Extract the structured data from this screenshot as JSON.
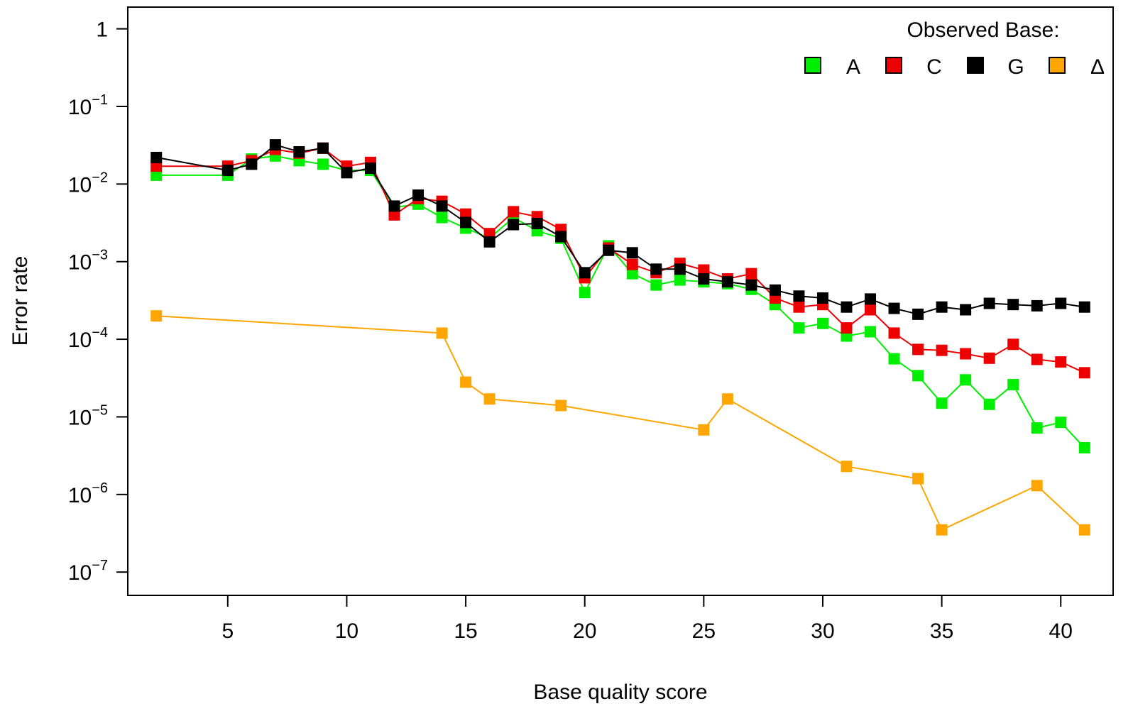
{
  "chart_data": {
    "type": "line",
    "xlabel": "Base quality score",
    "ylabel": "Error rate",
    "xlim": [
      0.8,
      42.2
    ],
    "ylim_log10": [
      -7.3,
      0.28
    ],
    "y_scale": "log10",
    "grid": false,
    "x_ticks": [
      5,
      10,
      15,
      20,
      25,
      30,
      35,
      40
    ],
    "y_ticks": [
      {
        "exp": 0,
        "base": "1",
        "sup": ""
      },
      {
        "exp": -1,
        "base": "10",
        "sup": "−1"
      },
      {
        "exp": -2,
        "base": "10",
        "sup": "−2"
      },
      {
        "exp": -3,
        "base": "10",
        "sup": "−3"
      },
      {
        "exp": -4,
        "base": "10",
        "sup": "−4"
      },
      {
        "exp": -5,
        "base": "10",
        "sup": "−5"
      },
      {
        "exp": -6,
        "base": "10",
        "sup": "−6"
      },
      {
        "exp": -7,
        "base": "10",
        "sup": "−7"
      }
    ],
    "legend": {
      "title": "Observed Base:",
      "placement": "top-right",
      "entries": [
        "A",
        "C",
        "G",
        "Δ"
      ]
    },
    "series": [
      {
        "name": "A",
        "color": "#00ee00",
        "points": [
          [
            2,
            0.013
          ],
          [
            5,
            0.013
          ],
          [
            6,
            0.021
          ],
          [
            7,
            0.023
          ],
          [
            8,
            0.02
          ],
          [
            9,
            0.018
          ],
          [
            10,
            0.015
          ],
          [
            11,
            0.015
          ],
          [
            12,
            0.005
          ],
          [
            13,
            0.0055
          ],
          [
            14,
            0.0037
          ],
          [
            15,
            0.0027
          ],
          [
            16,
            0.002
          ],
          [
            17,
            0.0037
          ],
          [
            18,
            0.0025
          ],
          [
            19,
            0.002
          ],
          [
            20,
            0.0004
          ],
          [
            21,
            0.0016
          ],
          [
            22,
            0.0007
          ],
          [
            23,
            0.0005
          ],
          [
            24,
            0.00058
          ],
          [
            25,
            0.00055
          ],
          [
            26,
            0.00052
          ],
          [
            27,
            0.00044
          ],
          [
            28,
            0.00028
          ],
          [
            29,
            0.00014
          ],
          [
            30,
            0.00016
          ],
          [
            31,
            0.00011
          ],
          [
            32,
            0.000125
          ],
          [
            33,
            5.6e-05
          ],
          [
            34,
            3.4e-05
          ],
          [
            35,
            1.5e-05
          ],
          [
            36,
            3e-05
          ],
          [
            37,
            1.45e-05
          ],
          [
            38,
            2.6e-05
          ],
          [
            39,
            7.2e-06
          ],
          [
            40,
            8.5e-06
          ],
          [
            41,
            4e-06
          ]
        ]
      },
      {
        "name": "C",
        "color": "#ee0000",
        "points": [
          [
            2,
            0.017
          ],
          [
            5,
            0.017
          ],
          [
            6,
            0.02
          ],
          [
            7,
            0.028
          ],
          [
            8,
            0.025
          ],
          [
            9,
            0.029
          ],
          [
            10,
            0.017
          ],
          [
            11,
            0.019
          ],
          [
            12,
            0.004
          ],
          [
            13,
            0.0065
          ],
          [
            14,
            0.006
          ],
          [
            15,
            0.0041
          ],
          [
            16,
            0.0023
          ],
          [
            17,
            0.0044
          ],
          [
            18,
            0.0038
          ],
          [
            19,
            0.0026
          ],
          [
            20,
            0.00062
          ],
          [
            21,
            0.0015
          ],
          [
            22,
            0.00092
          ],
          [
            23,
            0.00072
          ],
          [
            24,
            0.00095
          ],
          [
            25,
            0.00078
          ],
          [
            26,
            0.0006
          ],
          [
            27,
            0.0007
          ],
          [
            28,
            0.00034
          ],
          [
            29,
            0.00026
          ],
          [
            30,
            0.00028
          ],
          [
            31,
            0.00014
          ],
          [
            32,
            0.00024
          ],
          [
            33,
            0.00012
          ],
          [
            34,
            7.4e-05
          ],
          [
            35,
            7.2e-05
          ],
          [
            36,
            6.5e-05
          ],
          [
            37,
            5.7e-05
          ],
          [
            38,
            8.6e-05
          ],
          [
            39,
            5.5e-05
          ],
          [
            40,
            5.1e-05
          ],
          [
            41,
            3.7e-05
          ]
        ]
      },
      {
        "name": "G",
        "color": "#000000",
        "points": [
          [
            2,
            0.022
          ],
          [
            5,
            0.015
          ],
          [
            6,
            0.018
          ],
          [
            7,
            0.032
          ],
          [
            8,
            0.026
          ],
          [
            9,
            0.029
          ],
          [
            10,
            0.014
          ],
          [
            11,
            0.016
          ],
          [
            12,
            0.0052
          ],
          [
            13,
            0.0072
          ],
          [
            14,
            0.0052
          ],
          [
            15,
            0.0032
          ],
          [
            16,
            0.0018
          ],
          [
            17,
            0.003
          ],
          [
            18,
            0.0031
          ],
          [
            19,
            0.0021
          ],
          [
            20,
            0.00072
          ],
          [
            21,
            0.0014
          ],
          [
            22,
            0.0013
          ],
          [
            23,
            0.0008
          ],
          [
            24,
            0.0008
          ],
          [
            25,
            0.0006
          ],
          [
            26,
            0.00055
          ],
          [
            27,
            0.0005
          ],
          [
            28,
            0.00043
          ],
          [
            29,
            0.00036
          ],
          [
            30,
            0.00034
          ],
          [
            31,
            0.00026
          ],
          [
            32,
            0.00033
          ],
          [
            33,
            0.00025
          ],
          [
            34,
            0.00021
          ],
          [
            35,
            0.00026
          ],
          [
            36,
            0.00024
          ],
          [
            37,
            0.00029
          ],
          [
            38,
            0.00028
          ],
          [
            39,
            0.00027
          ],
          [
            40,
            0.00029
          ],
          [
            41,
            0.00026
          ]
        ]
      },
      {
        "name": "Δ",
        "color": "#ffa500",
        "points": [
          [
            2,
            0.0002
          ],
          [
            14,
            0.00012
          ],
          [
            15,
            2.8e-05
          ],
          [
            16,
            1.7e-05
          ],
          [
            19,
            1.4e-05
          ],
          [
            25,
            6.8e-06
          ],
          [
            26,
            1.7e-05
          ],
          [
            31,
            2.3e-06
          ],
          [
            34,
            1.6e-06
          ],
          [
            35,
            3.5e-07
          ],
          [
            39,
            1.3e-06
          ],
          [
            41,
            3.5e-07
          ]
        ]
      }
    ]
  }
}
